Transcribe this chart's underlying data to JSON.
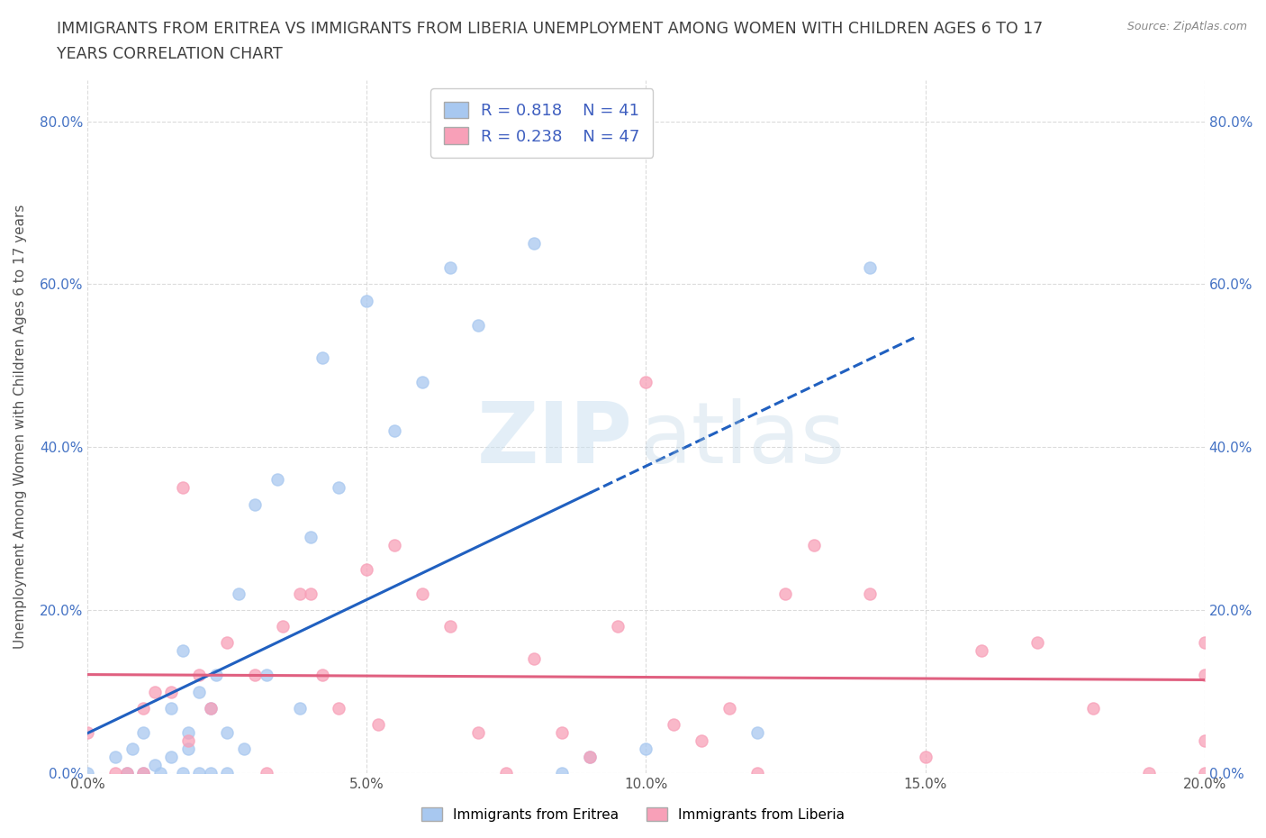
{
  "title_line1": "IMMIGRANTS FROM ERITREA VS IMMIGRANTS FROM LIBERIA UNEMPLOYMENT AMONG WOMEN WITH CHILDREN AGES 6 TO 17",
  "title_line2": "YEARS CORRELATION CHART",
  "source_text": "Source: ZipAtlas.com",
  "ylabel": "Unemployment Among Women with Children Ages 6 to 17 years",
  "xlim": [
    0.0,
    0.2
  ],
  "ylim": [
    0.0,
    0.85
  ],
  "eritrea_R": 0.818,
  "eritrea_N": 41,
  "liberia_R": 0.238,
  "liberia_N": 47,
  "eritrea_color": "#a8c8f0",
  "eritrea_line_color": "#2060c0",
  "liberia_color": "#f8a0b8",
  "liberia_line_color": "#e06080",
  "background_color": "#ffffff",
  "grid_color": "#cccccc",
  "title_color": "#404040",
  "legend_text_color": "#4060c0",
  "right_tick_color": "#4472c4",
  "eritrea_scatter_x": [
    0.0,
    0.005,
    0.007,
    0.008,
    0.01,
    0.01,
    0.012,
    0.013,
    0.015,
    0.015,
    0.017,
    0.017,
    0.018,
    0.018,
    0.02,
    0.02,
    0.022,
    0.022,
    0.023,
    0.025,
    0.025,
    0.027,
    0.028,
    0.03,
    0.032,
    0.034,
    0.038,
    0.04,
    0.042,
    0.045,
    0.05,
    0.055,
    0.06,
    0.065,
    0.07,
    0.08,
    0.085,
    0.09,
    0.1,
    0.12,
    0.14
  ],
  "eritrea_scatter_y": [
    0.0,
    0.02,
    0.0,
    0.03,
    0.0,
    0.05,
    0.01,
    0.0,
    0.02,
    0.08,
    0.0,
    0.15,
    0.03,
    0.05,
    0.0,
    0.1,
    0.0,
    0.08,
    0.12,
    0.0,
    0.05,
    0.22,
    0.03,
    0.33,
    0.12,
    0.36,
    0.08,
    0.29,
    0.51,
    0.35,
    0.58,
    0.42,
    0.48,
    0.62,
    0.55,
    0.65,
    0.0,
    0.02,
    0.03,
    0.05,
    0.62
  ],
  "liberia_scatter_x": [
    0.0,
    0.005,
    0.007,
    0.01,
    0.01,
    0.012,
    0.015,
    0.017,
    0.018,
    0.02,
    0.022,
    0.025,
    0.03,
    0.032,
    0.035,
    0.038,
    0.04,
    0.042,
    0.045,
    0.05,
    0.052,
    0.055,
    0.06,
    0.065,
    0.07,
    0.075,
    0.08,
    0.085,
    0.09,
    0.095,
    0.1,
    0.105,
    0.11,
    0.115,
    0.12,
    0.125,
    0.13,
    0.14,
    0.15,
    0.16,
    0.17,
    0.18,
    0.19,
    0.2,
    0.2,
    0.2,
    0.2
  ],
  "liberia_scatter_y": [
    0.05,
    0.0,
    0.0,
    0.08,
    0.0,
    0.1,
    0.1,
    0.35,
    0.04,
    0.12,
    0.08,
    0.16,
    0.12,
    0.0,
    0.18,
    0.22,
    0.22,
    0.12,
    0.08,
    0.25,
    0.06,
    0.28,
    0.22,
    0.18,
    0.05,
    0.0,
    0.14,
    0.05,
    0.02,
    0.18,
    0.48,
    0.06,
    0.04,
    0.08,
    0.0,
    0.22,
    0.28,
    0.22,
    0.02,
    0.15,
    0.16,
    0.08,
    0.0,
    0.12,
    0.0,
    0.04,
    0.16
  ]
}
